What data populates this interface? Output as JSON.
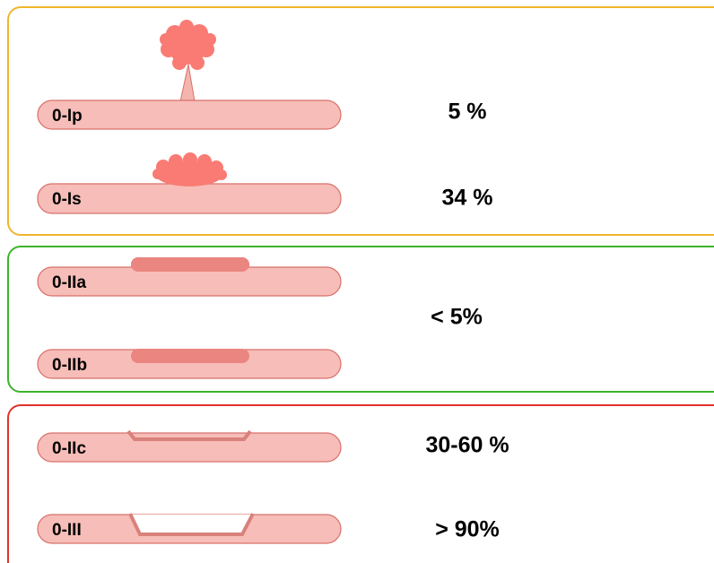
{
  "groups": [
    {
      "items": [
        {
          "label": "0-Ip"
        },
        {
          "label": "0-Is"
        }
      ],
      "rates": [
        "5 %",
        "34 %"
      ]
    },
    {
      "items": [
        {
          "label": "0-IIa"
        },
        {
          "label": "0-IIb"
        }
      ],
      "rates": [
        "< 5%"
      ]
    },
    {
      "items": [
        {
          "label": "0-IIc"
        },
        {
          "label": "0-III"
        }
      ],
      "rates": [
        "30-60 %",
        "> 90%"
      ]
    }
  ]
}
